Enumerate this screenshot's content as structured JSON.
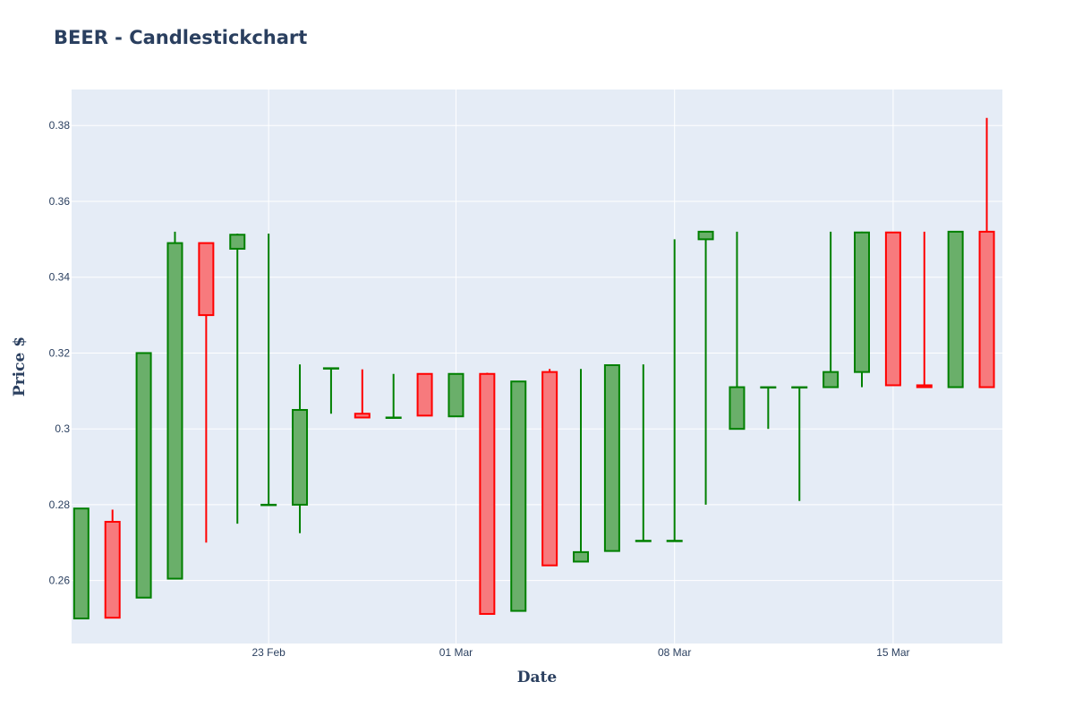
{
  "chart_data": {
    "type": "candlestick",
    "title": "BEER - Candlestickchart",
    "xlabel": "Date",
    "ylabel": "Price $",
    "xlim": [
      "2021-02-17",
      "2021-03-19"
    ],
    "ylim": [
      0.2434,
      0.3895
    ],
    "yticks": [
      0.26,
      0.28,
      0.3,
      0.32,
      0.34,
      0.36,
      0.38
    ],
    "ytick_labels": [
      "0.26",
      "0.28",
      "0.3",
      "0.32",
      "0.34",
      "0.36",
      "0.38"
    ],
    "xticks": [
      "2021-02-23",
      "2021-03-01",
      "2021-03-08",
      "2021-03-15"
    ],
    "xtick_labels": [
      "23 Feb",
      "01 Mar",
      "08 Mar",
      "15 Mar"
    ],
    "grid": true,
    "increasing_color": "#008000",
    "increasing_fill": "#6aaf6a",
    "decreasing_color": "#ff0000",
    "decreasing_fill": "#f77a7d",
    "plot_bg": "#e5ecf6",
    "candles": [
      {
        "date": "2021-02-17",
        "open": 0.25,
        "high": 0.279,
        "low": 0.25,
        "close": 0.279
      },
      {
        "date": "2021-02-18",
        "open": 0.2755,
        "high": 0.2787,
        "low": 0.2502,
        "close": 0.2502
      },
      {
        "date": "2021-02-19",
        "open": 0.2555,
        "high": 0.32,
        "low": 0.2555,
        "close": 0.32
      },
      {
        "date": "2021-02-20",
        "open": 0.2605,
        "high": 0.352,
        "low": 0.2605,
        "close": 0.349
      },
      {
        "date": "2021-02-21",
        "open": 0.349,
        "high": 0.349,
        "low": 0.27,
        "close": 0.33
      },
      {
        "date": "2021-02-22",
        "open": 0.3475,
        "high": 0.3515,
        "low": 0.275,
        "close": 0.3512
      },
      {
        "date": "2021-02-23",
        "open": 0.28,
        "high": 0.3515,
        "low": 0.28,
        "close": 0.28
      },
      {
        "date": "2021-02-24",
        "open": 0.28,
        "high": 0.317,
        "low": 0.2725,
        "close": 0.305
      },
      {
        "date": "2021-02-25",
        "open": 0.316,
        "high": 0.316,
        "low": 0.304,
        "close": 0.316
      },
      {
        "date": "2021-02-26",
        "open": 0.304,
        "high": 0.3157,
        "low": 0.303,
        "close": 0.303
      },
      {
        "date": "2021-02-27",
        "open": 0.303,
        "high": 0.3145,
        "low": 0.303,
        "close": 0.303
      },
      {
        "date": "2021-02-28",
        "open": 0.3145,
        "high": 0.3145,
        "low": 0.3035,
        "close": 0.3035
      },
      {
        "date": "2021-03-01",
        "open": 0.3033,
        "high": 0.3145,
        "low": 0.3033,
        "close": 0.3145
      },
      {
        "date": "2021-03-02",
        "open": 0.3145,
        "high": 0.3148,
        "low": 0.2512,
        "close": 0.2512
      },
      {
        "date": "2021-03-03",
        "open": 0.252,
        "high": 0.3125,
        "low": 0.252,
        "close": 0.3125
      },
      {
        "date": "2021-03-04",
        "open": 0.315,
        "high": 0.3158,
        "low": 0.264,
        "close": 0.264
      },
      {
        "date": "2021-03-05",
        "open": 0.265,
        "high": 0.3158,
        "low": 0.265,
        "close": 0.2675
      },
      {
        "date": "2021-03-06",
        "open": 0.2678,
        "high": 0.317,
        "low": 0.2678,
        "close": 0.3168
      },
      {
        "date": "2021-03-07",
        "open": 0.2705,
        "high": 0.317,
        "low": 0.2705,
        "close": 0.2705
      },
      {
        "date": "2021-03-08",
        "open": 0.2705,
        "high": 0.35,
        "low": 0.2705,
        "close": 0.2705
      },
      {
        "date": "2021-03-09",
        "open": 0.35,
        "high": 0.352,
        "low": 0.28,
        "close": 0.352
      },
      {
        "date": "2021-03-10",
        "open": 0.3,
        "high": 0.352,
        "low": 0.3,
        "close": 0.311
      },
      {
        "date": "2021-03-11",
        "open": 0.311,
        "high": 0.311,
        "low": 0.3,
        "close": 0.311
      },
      {
        "date": "2021-03-12",
        "open": 0.311,
        "high": 0.311,
        "low": 0.281,
        "close": 0.311
      },
      {
        "date": "2021-03-13",
        "open": 0.311,
        "high": 0.352,
        "low": 0.311,
        "close": 0.315
      },
      {
        "date": "2021-03-14",
        "open": 0.315,
        "high": 0.352,
        "low": 0.311,
        "close": 0.3518
      },
      {
        "date": "2021-03-15",
        "open": 0.3518,
        "high": 0.3518,
        "low": 0.3115,
        "close": 0.3115
      },
      {
        "date": "2021-03-16",
        "open": 0.3115,
        "high": 0.352,
        "low": 0.311,
        "close": 0.311
      },
      {
        "date": "2021-03-17",
        "open": 0.311,
        "high": 0.352,
        "low": 0.311,
        "close": 0.352
      },
      {
        "date": "2021-03-18",
        "open": 0.352,
        "high": 0.382,
        "low": 0.311,
        "close": 0.311
      }
    ]
  }
}
